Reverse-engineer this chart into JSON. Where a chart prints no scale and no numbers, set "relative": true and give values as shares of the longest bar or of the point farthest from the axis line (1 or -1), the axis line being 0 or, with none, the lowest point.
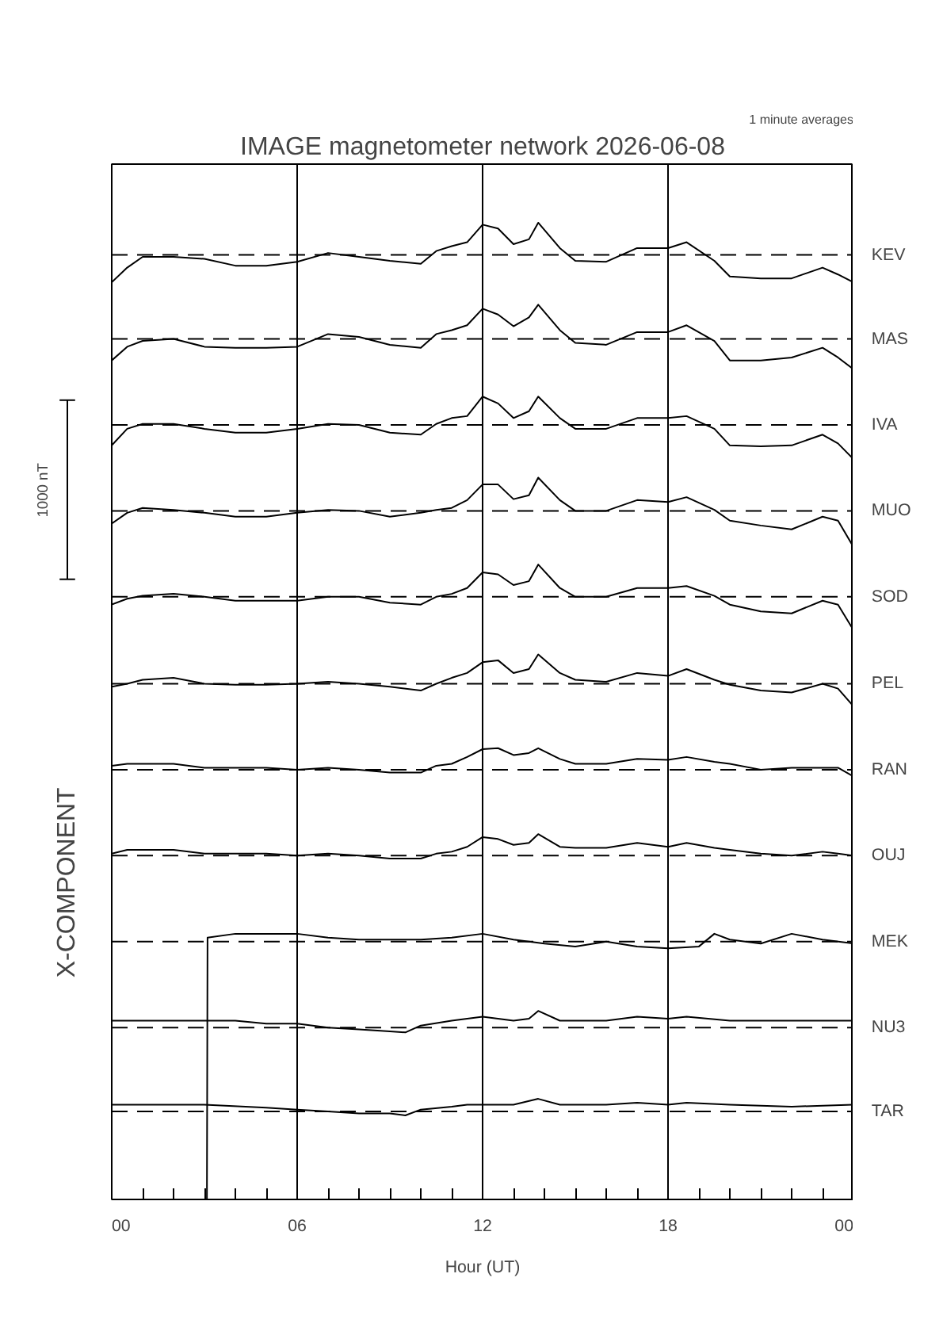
{
  "chart_data": {
    "type": "line",
    "relative": true,
    "title": "IMAGE magnetometer network 2026-06-08",
    "xlabel": "Hour (UT)",
    "ylabel": "1000 nT",
    "annotations": [
      "1 minute averages",
      "X-COMPONENT"
    ],
    "xlim": [
      0,
      24
    ],
    "xticks": [
      {
        "value": 0,
        "label": "00"
      },
      {
        "value": 1,
        "label": null
      },
      {
        "value": 2,
        "label": null
      },
      {
        "value": 3,
        "label": null
      },
      {
        "value": 4,
        "label": null
      },
      {
        "value": 5,
        "label": null
      },
      {
        "value": 6,
        "label": "06"
      },
      {
        "value": 7,
        "label": null
      },
      {
        "value": 8,
        "label": null
      },
      {
        "value": 9,
        "label": null
      },
      {
        "value": 10,
        "label": null
      },
      {
        "value": 11,
        "label": null
      },
      {
        "value": 12,
        "label": "12"
      },
      {
        "value": 13,
        "label": null
      },
      {
        "value": 14,
        "label": null
      },
      {
        "value": 15,
        "label": null
      },
      {
        "value": 16,
        "label": null
      },
      {
        "value": 17,
        "label": null
      },
      {
        "value": 18,
        "label": "18"
      },
      {
        "value": 19,
        "label": null
      },
      {
        "value": 20,
        "label": null
      },
      {
        "value": 21,
        "label": null
      },
      {
        "value": 22,
        "label": null
      },
      {
        "value": 23,
        "label": null
      },
      {
        "value": 24,
        "label": "00"
      }
    ],
    "x": [
      0,
      0.5,
      1,
      2,
      3,
      4,
      5,
      6,
      7,
      8,
      9,
      10,
      10.5,
      11,
      11.5,
      12,
      12.5,
      13,
      13.5,
      13.8,
      14.5,
      15,
      16,
      17,
      18,
      18.6,
      19.5,
      20,
      21,
      22,
      23,
      23.5,
      24
    ],
    "series": [
      {
        "color": "#000000",
        "values": [
          0.939,
          0.954,
          0.965,
          0.965,
          0.963,
          0.956,
          0.956,
          0.96,
          0.969,
          0.965,
          0.961,
          0.958,
          0.971,
          0.976,
          0.98,
          0.998,
          0.994,
          0.978,
          0.983,
          1,
          0.974,
          0.961,
          0.96,
          0.974,
          0.974,
          0.98,
          0.961,
          0.945,
          0.943,
          0.943,
          0.954,
          0.947,
          0.939
        ]
      },
      {
        "color": "#000000",
        "values": [
          0.859,
          0.873,
          0.879,
          0.881,
          0.873,
          0.872,
          0.872,
          0.873,
          0.886,
          0.883,
          0.875,
          0.872,
          0.886,
          0.89,
          0.895,
          0.912,
          0.906,
          0.894,
          0.903,
          0.916,
          0.89,
          0.877,
          0.875,
          0.888,
          0.888,
          0.895,
          0.879,
          0.859,
          0.859,
          0.862,
          0.872,
          0.862,
          0.85
        ]
      },
      {
        "color": "#000000",
        "values": [
          0.772,
          0.789,
          0.794,
          0.794,
          0.789,
          0.785,
          0.785,
          0.789,
          0.794,
          0.793,
          0.785,
          0.783,
          0.794,
          0.8,
          0.802,
          0.822,
          0.815,
          0.8,
          0.807,
          0.822,
          0.8,
          0.789,
          0.789,
          0.8,
          0.8,
          0.802,
          0.789,
          0.772,
          0.771,
          0.772,
          0.783,
          0.774,
          0.758
        ]
      },
      {
        "color": "#000000",
        "values": [
          0.692,
          0.703,
          0.708,
          0.706,
          0.703,
          0.699,
          0.699,
          0.703,
          0.706,
          0.705,
          0.699,
          0.703,
          0.706,
          0.708,
          0.716,
          0.732,
          0.732,
          0.717,
          0.721,
          0.739,
          0.716,
          0.705,
          0.705,
          0.716,
          0.714,
          0.719,
          0.706,
          0.695,
          0.69,
          0.686,
          0.699,
          0.695,
          0.668
        ]
      },
      {
        "color": "#000000",
        "values": [
          0.609,
          0.615,
          0.618,
          0.62,
          0.617,
          0.613,
          0.613,
          0.613,
          0.617,
          0.617,
          0.611,
          0.609,
          0.617,
          0.62,
          0.626,
          0.642,
          0.64,
          0.629,
          0.633,
          0.65,
          0.626,
          0.617,
          0.617,
          0.626,
          0.626,
          0.628,
          0.618,
          0.609,
          0.602,
          0.6,
          0.613,
          0.609,
          0.583
        ]
      },
      {
        "color": "#000000",
        "values": [
          0.525,
          0.528,
          0.532,
          0.534,
          0.528,
          0.527,
          0.527,
          0.528,
          0.53,
          0.528,
          0.525,
          0.521,
          0.528,
          0.534,
          0.539,
          0.55,
          0.552,
          0.539,
          0.543,
          0.558,
          0.539,
          0.532,
          0.53,
          0.539,
          0.536,
          0.543,
          0.532,
          0.527,
          0.521,
          0.519,
          0.528,
          0.523,
          0.505
        ]
      },
      {
        "color": "#000000",
        "values": [
          0.444,
          0.446,
          0.446,
          0.446,
          0.442,
          0.442,
          0.442,
          0.44,
          0.442,
          0.44,
          0.437,
          0.437,
          0.444,
          0.446,
          0.453,
          0.461,
          0.462,
          0.455,
          0.457,
          0.462,
          0.451,
          0.446,
          0.446,
          0.451,
          0.45,
          0.453,
          0.448,
          0.446,
          0.44,
          0.442,
          0.442,
          0.442,
          0.433
        ]
      },
      {
        "color": "#000000",
        "values": [
          0.354,
          0.358,
          0.358,
          0.358,
          0.354,
          0.354,
          0.354,
          0.352,
          0.354,
          0.352,
          0.349,
          0.349,
          0.354,
          0.356,
          0.361,
          0.371,
          0.369,
          0.363,
          0.365,
          0.374,
          0.361,
          0.36,
          0.36,
          0.365,
          0.361,
          0.365,
          0.36,
          0.358,
          0.354,
          0.352,
          0.356,
          0.354,
          0.352
        ]
      },
      {
        "color": "#000000",
        "x": [
          3.08,
          3.1,
          4,
          5,
          6,
          7,
          8,
          9,
          10,
          11,
          12,
          13,
          14,
          15,
          16,
          17,
          18,
          19,
          19.5,
          20,
          21,
          22,
          23,
          24
        ],
        "values": [
          0,
          0.268,
          0.272,
          0.272,
          0.272,
          0.268,
          0.266,
          0.266,
          0.266,
          0.268,
          0.272,
          0.266,
          0.262,
          0.259,
          0.264,
          0.259,
          0.257,
          0.259,
          0.272,
          0.266,
          0.262,
          0.272,
          0.266,
          0.262
        ]
      },
      {
        "color": "#000000",
        "x": [
          0,
          1,
          3,
          4,
          5,
          6,
          7,
          8,
          9,
          9.5,
          10,
          11,
          11.5,
          12,
          13,
          13.5,
          13.8,
          14.5,
          16,
          17,
          18,
          18.6,
          20,
          22,
          24
        ],
        "values": [
          0.183,
          0.183,
          0.183,
          0.183,
          0.18,
          0.18,
          0.176,
          0.174,
          0.172,
          0.171,
          0.178,
          0.183,
          0.185,
          0.187,
          0.183,
          0.185,
          0.193,
          0.183,
          0.183,
          0.187,
          0.185,
          0.187,
          0.183,
          0.183,
          0.183
        ]
      },
      {
        "color": "#000000",
        "x": [
          0,
          3,
          5,
          6,
          7,
          8,
          9,
          9.5,
          10,
          11,
          11.5,
          12,
          13,
          13.8,
          14.5,
          16,
          17,
          18,
          18.6,
          20,
          22,
          24
        ],
        "values": [
          0.097,
          0.097,
          0.094,
          0.092,
          0.09,
          0.088,
          0.088,
          0.086,
          0.092,
          0.095,
          0.097,
          0.097,
          0.097,
          0.103,
          0.097,
          0.097,
          0.099,
          0.097,
          0.099,
          0.097,
          0.095,
          0.097
        ]
      }
    ],
    "ref_lines": [
      {
        "axis": "x",
        "value": 6,
        "color": "#000000",
        "line_style": "solid"
      },
      {
        "axis": "x",
        "value": 12,
        "color": "#000000",
        "line_style": "solid"
      },
      {
        "axis": "x",
        "value": 18,
        "color": "#000000",
        "line_style": "solid"
      },
      {
        "axis": "y",
        "value": 0.967,
        "label": "KEV",
        "color": "#000000",
        "line_style": "dashed"
      },
      {
        "axis": "y",
        "value": 0.881,
        "label": "MAS",
        "color": "#000000",
        "line_style": "dashed"
      },
      {
        "axis": "y",
        "value": 0.793,
        "label": "IVA",
        "color": "#000000",
        "line_style": "dashed"
      },
      {
        "axis": "y",
        "value": 0.705,
        "label": "MUO",
        "color": "#000000",
        "line_style": "dashed"
      },
      {
        "axis": "y",
        "value": 0.617,
        "label": "SOD",
        "color": "#000000",
        "line_style": "dashed"
      },
      {
        "axis": "y",
        "value": 0.528,
        "label": "PEL",
        "color": "#000000",
        "line_style": "dashed"
      },
      {
        "axis": "y",
        "value": 0.44,
        "label": "RAN",
        "color": "#000000",
        "line_style": "dashed"
      },
      {
        "axis": "y",
        "value": 0.352,
        "label": "OUJ",
        "color": "#000000",
        "line_style": "dashed"
      },
      {
        "axis": "y",
        "value": 0.264,
        "label": "MEK",
        "color": "#000000",
        "line_style": "dashed"
      },
      {
        "axis": "y",
        "value": 0.176,
        "label": "NU3",
        "color": "#000000",
        "line_style": "dashed"
      },
      {
        "axis": "y",
        "value": 0.09,
        "label": "TAR",
        "color": "#000000",
        "line_style": "dashed"
      }
    ]
  }
}
